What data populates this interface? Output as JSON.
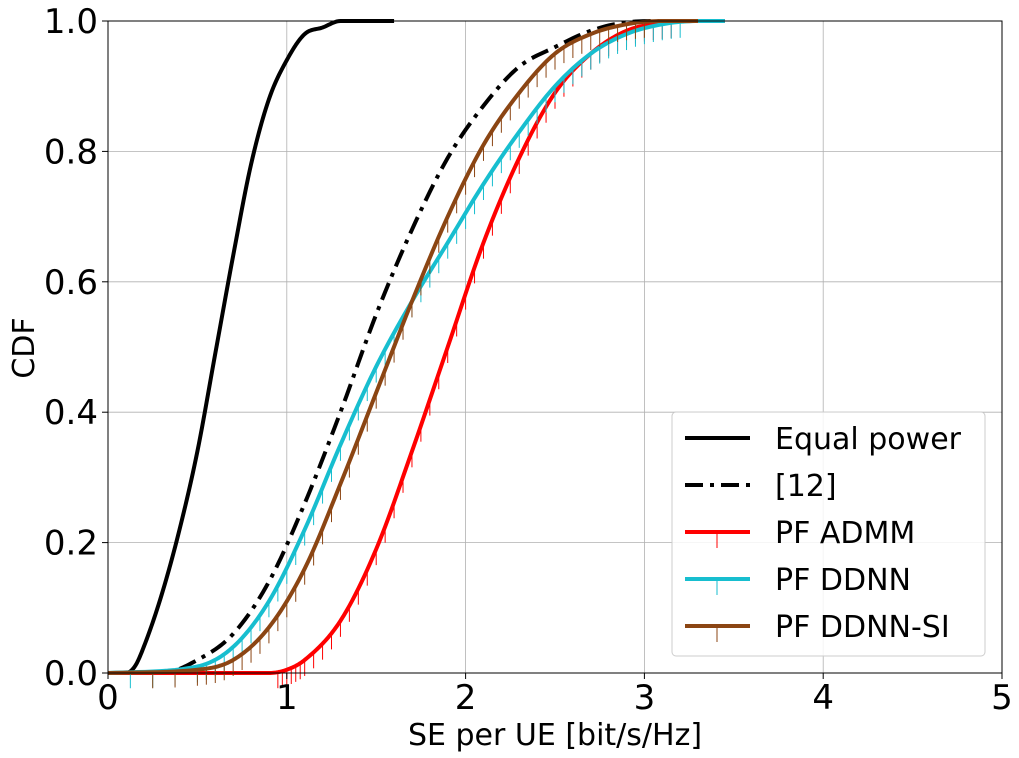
{
  "chart_data": {
    "type": "line",
    "xlabel": "SE per UE [bit/s/Hz]",
    "ylabel": "CDF",
    "xlim": [
      0,
      5
    ],
    "ylim": [
      0,
      1
    ],
    "xticks": [
      "0",
      "1",
      "2",
      "3",
      "4",
      "5"
    ],
    "yticks": [
      "0.0",
      "0.2",
      "0.4",
      "0.6",
      "0.8",
      "1.0"
    ],
    "grid": true,
    "legend_position": "lower-right",
    "series": [
      {
        "name": "Equal power",
        "color": "#000000",
        "style": "solid",
        "x": [
          0.0,
          0.1,
          0.15,
          0.2,
          0.3,
          0.4,
          0.5,
          0.6,
          0.7,
          0.8,
          0.9,
          1.0,
          1.1,
          1.2,
          1.3,
          1.4,
          1.6
        ],
        "y": [
          0.0,
          0.0,
          0.01,
          0.04,
          0.12,
          0.22,
          0.34,
          0.49,
          0.64,
          0.78,
          0.88,
          0.94,
          0.98,
          0.99,
          1.0,
          1.0,
          1.0
        ]
      },
      {
        "name": "[12]",
        "color": "#000000",
        "style": "dashdot",
        "x": [
          0.0,
          0.3,
          0.5,
          0.7,
          0.9,
          1.1,
          1.3,
          1.5,
          1.7,
          1.9,
          2.1,
          2.3,
          2.5,
          2.7,
          2.9,
          3.1,
          3.3
        ],
        "y": [
          0.0,
          0.0,
          0.02,
          0.06,
          0.14,
          0.26,
          0.4,
          0.55,
          0.68,
          0.79,
          0.87,
          0.93,
          0.96,
          0.985,
          0.998,
          1.0,
          1.0
        ]
      },
      {
        "name": "PF ADMM",
        "color": "#ff0000",
        "style": "solid",
        "markers": true,
        "x": [
          0.0,
          0.9,
          1.0,
          1.1,
          1.3,
          1.5,
          1.7,
          1.9,
          2.1,
          2.3,
          2.5,
          2.7,
          2.9,
          3.1,
          3.3,
          3.45
        ],
        "y": [
          0.0,
          0.0,
          0.005,
          0.02,
          0.08,
          0.19,
          0.34,
          0.5,
          0.66,
          0.79,
          0.89,
          0.95,
          0.985,
          0.997,
          1.0,
          1.0
        ]
      },
      {
        "name": "PF DDNN",
        "color": "#17becf",
        "style": "solid",
        "markers": true,
        "x": [
          0.0,
          0.5,
          0.7,
          0.9,
          1.1,
          1.3,
          1.5,
          1.7,
          1.9,
          2.1,
          2.3,
          2.5,
          2.7,
          2.9,
          3.1,
          3.3,
          3.45
        ],
        "y": [
          0.0,
          0.01,
          0.04,
          0.11,
          0.22,
          0.35,
          0.47,
          0.57,
          0.66,
          0.75,
          0.83,
          0.9,
          0.95,
          0.98,
          0.995,
          1.0,
          1.0
        ]
      },
      {
        "name": "PF DDNN-SI",
        "color": "#8b4513",
        "style": "solid",
        "markers": true,
        "x": [
          0.0,
          0.5,
          0.7,
          0.9,
          1.1,
          1.3,
          1.5,
          1.7,
          1.9,
          2.1,
          2.3,
          2.5,
          2.7,
          2.9,
          3.1,
          3.3
        ],
        "y": [
          0.0,
          0.005,
          0.02,
          0.07,
          0.16,
          0.29,
          0.43,
          0.57,
          0.7,
          0.81,
          0.89,
          0.95,
          0.98,
          0.995,
          1.0,
          1.0
        ]
      }
    ]
  }
}
